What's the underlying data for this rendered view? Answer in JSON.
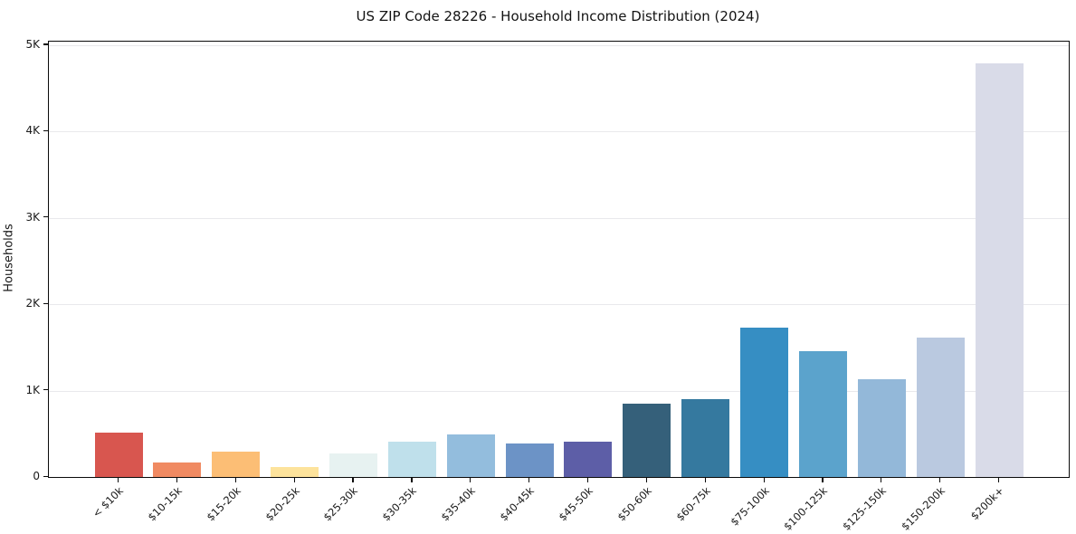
{
  "chart_data": {
    "type": "bar",
    "title": "US ZIP Code 28226 - Household Income Distribution (2024)",
    "xlabel": "",
    "ylabel": "Households",
    "categories": [
      "< $10k",
      "$10-15k",
      "$15-20k",
      "$20-25k",
      "$25-30k",
      "$30-35k",
      "$35-40k",
      "$40-45k",
      "$45-50k",
      "$50-60k",
      "$60-75k",
      "$75-100k",
      "$100-125k",
      "$125-150k",
      "$150-200k",
      "$200k+"
    ],
    "values": [
      515,
      165,
      290,
      120,
      270,
      410,
      490,
      385,
      405,
      850,
      905,
      1730,
      1460,
      1130,
      1610,
      4790
    ],
    "bar_colors": [
      "#d8564f",
      "#f08a62",
      "#fcbe75",
      "#fde39c",
      "#e7f2f1",
      "#bfe0eb",
      "#93bddd",
      "#6c93c6",
      "#5d5ea7",
      "#35607a",
      "#35799f",
      "#368ec3",
      "#5ba3cc",
      "#93b8d9",
      "#bac9e0",
      "#d9dbe8"
    ],
    "ylim": [
      0,
      5040
    ],
    "yticks": [
      {
        "value": 0,
        "label": "0"
      },
      {
        "value": 1000,
        "label": "1K"
      },
      {
        "value": 2000,
        "label": "2K"
      },
      {
        "value": 3000,
        "label": "3K"
      },
      {
        "value": 4000,
        "label": "4K"
      },
      {
        "value": 5000,
        "label": "5K"
      }
    ],
    "grid": "horizontal-only",
    "legend": "none",
    "background": "#ffffff",
    "gridline_color": "#e9e9ec",
    "axis_color": "#0a0a0a"
  }
}
